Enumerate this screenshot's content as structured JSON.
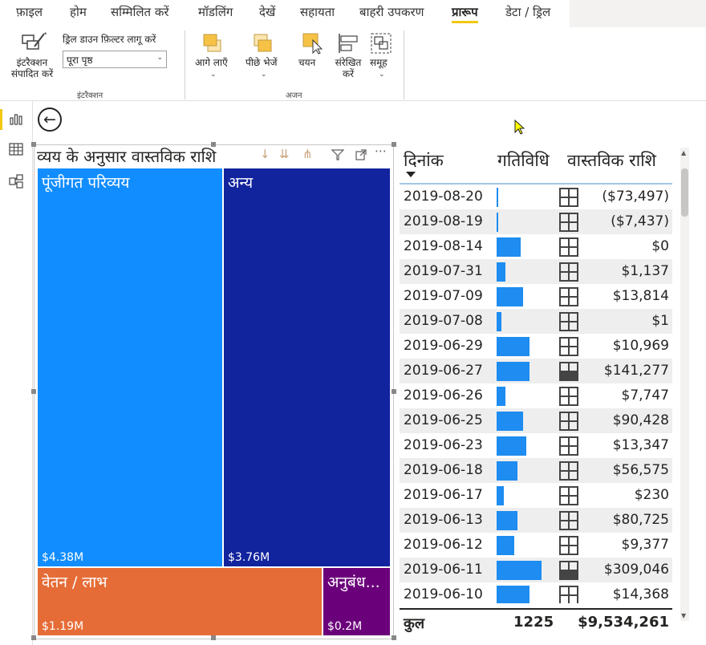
{
  "menu": {
    "items": [
      "फ़ाइल",
      "होम",
      "सम्मिलित करें",
      "मॉडलिंग",
      "देखें",
      "सहायता",
      "बाहरी उपकरण",
      "प्रारूप",
      "डेटा / ड्रिल"
    ],
    "active": "प्रारूप"
  },
  "ribbon": {
    "edit_interactions": "इंटरैक्शन संपादित करें",
    "drill_filter_label": "ड्रिल डाउन फ़िल्टर लागू करें",
    "drill_filter_value": "पूरा पृष्ठ",
    "group_interactions": "इंटरैक्शन",
    "bring_forward": "आगे लाएँ",
    "send_backward": "पीछे भेजें",
    "selection": "चयन",
    "align": "संरेखित करें",
    "group": "समूह",
    "group_arrange": "अजन"
  },
  "treemap": {
    "title": "व्यय के अनुसार वास्तविक राशि",
    "tiles": [
      {
        "name": "पूंजीगत परिव्यय",
        "value": "$4.38M",
        "color": "#118dff"
      },
      {
        "name": "अन्य",
        "value": "$3.76M",
        "color": "#12239e"
      },
      {
        "name": "वेतन / लाभ",
        "value": "$1.19M",
        "color": "#e66c37"
      },
      {
        "name": "अनुबंध...",
        "value": "$0.2M",
        "color": "#6b007b"
      }
    ]
  },
  "table": {
    "headers": {
      "date": "दिनांक",
      "activity": "गतिविधि",
      "amount": "वास्तविक राशि"
    },
    "rows": [
      {
        "date": "2019-08-20",
        "bar": 0.01,
        "fill": false,
        "amount": "($73,497)"
      },
      {
        "date": "2019-08-19",
        "bar": 0.01,
        "fill": false,
        "amount": "($7,437)"
      },
      {
        "date": "2019-08-14",
        "bar": 0.4,
        "fill": false,
        "amount": "$0"
      },
      {
        "date": "2019-07-31",
        "bar": 0.15,
        "fill": false,
        "amount": "$1,137"
      },
      {
        "date": "2019-07-09",
        "bar": 0.45,
        "fill": false,
        "amount": "$13,814"
      },
      {
        "date": "2019-07-08",
        "bar": 0.08,
        "fill": false,
        "amount": "$1"
      },
      {
        "date": "2019-06-29",
        "bar": 0.55,
        "fill": false,
        "amount": "$10,969"
      },
      {
        "date": "2019-06-27",
        "bar": 0.55,
        "fill": true,
        "amount": "$141,277"
      },
      {
        "date": "2019-06-26",
        "bar": 0.15,
        "fill": false,
        "amount": "$7,747"
      },
      {
        "date": "2019-06-25",
        "bar": 0.45,
        "fill": false,
        "amount": "$90,428"
      },
      {
        "date": "2019-06-23",
        "bar": 0.5,
        "fill": false,
        "amount": "$13,347"
      },
      {
        "date": "2019-06-18",
        "bar": 0.35,
        "fill": false,
        "amount": "$56,575"
      },
      {
        "date": "2019-06-17",
        "bar": 0.12,
        "fill": false,
        "amount": "$230"
      },
      {
        "date": "2019-06-13",
        "bar": 0.35,
        "fill": false,
        "amount": "$80,725"
      },
      {
        "date": "2019-06-12",
        "bar": 0.3,
        "fill": false,
        "amount": "$9,377"
      },
      {
        "date": "2019-06-11",
        "bar": 0.75,
        "fill": true,
        "amount": "$309,046"
      },
      {
        "date": "2019-06-10",
        "bar": 0.55,
        "fill": false,
        "amount": "$14,368"
      }
    ],
    "total": {
      "label": "कुल",
      "activity": "1225",
      "amount": "$9,534,261"
    }
  },
  "icons": {
    "report_view": "bar-chart-icon",
    "data_view": "table-icon",
    "model_view": "model-icon",
    "back": "back-arrow-icon"
  }
}
